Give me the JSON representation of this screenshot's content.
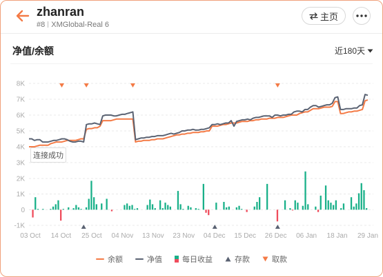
{
  "header": {
    "title": "zhanran",
    "rank": "#8",
    "account": "XMGlobal-Real 6",
    "home_label": "主页"
  },
  "section": {
    "title": "净值/余额",
    "range_label": "近180天"
  },
  "tooltip": "连接成功",
  "colors": {
    "balance": "#f47a45",
    "equity": "#5a6272",
    "profit_positive": "#19b089",
    "profit_negative": "#ef4c5c",
    "deposit": "#5a6272",
    "withdraw": "#f47a45",
    "accent": "#f47a45"
  },
  "legend": [
    {
      "key": "balance",
      "label": "余额"
    },
    {
      "key": "equity",
      "label": "净值"
    },
    {
      "key": "profit",
      "label": "每日收益"
    },
    {
      "key": "deposit",
      "label": "存款"
    },
    {
      "key": "withdraw",
      "label": "取款"
    }
  ],
  "chart_data": {
    "type": "line",
    "upper": {
      "y_ticks": [
        "8K",
        "7K",
        "6K",
        "5K",
        "4K",
        "3K"
      ],
      "ylim": [
        3000,
        8000
      ],
      "grid": true,
      "series": [
        {
          "name": "余额",
          "values": [
            4000,
            4000,
            4000,
            4050,
            4100,
            4100,
            4100,
            4100,
            4200,
            4250,
            4300,
            4300,
            4300,
            4350,
            4400,
            4400,
            4400,
            4400,
            4450,
            4500,
            4500,
            5100,
            5150,
            5150,
            5200,
            5200,
            5300,
            5650,
            5650,
            5650,
            5650,
            5700,
            5750,
            5750,
            5750,
            5750,
            5750,
            5750,
            5750,
            4300,
            4350,
            4350,
            4400,
            4400,
            4400,
            4450,
            4450,
            4500,
            4500,
            4500,
            4550,
            4600,
            4650,
            4700,
            4750,
            4750,
            4800,
            4800,
            4850,
            4850,
            4900,
            4900,
            4900,
            4950,
            4950,
            5000,
            5000,
            5300,
            5300,
            5300,
            5350,
            5400,
            5400,
            5450,
            5500,
            5500,
            5500,
            5550,
            5600,
            5600,
            5600,
            5650,
            5650,
            5700,
            5700,
            5750,
            5750,
            5750,
            5800,
            5800,
            5800,
            5850,
            5850,
            5850,
            5900,
            5950,
            6000,
            6000,
            6000,
            6100,
            6150,
            6200,
            6200,
            6300,
            6400,
            6400,
            6400,
            6450,
            6500,
            6500,
            6500,
            6550,
            6850,
            6850,
            6100,
            6100,
            6150,
            6200,
            6200,
            6250,
            6250,
            6300,
            6350,
            6900,
            6950
          ]
        },
        {
          "name": "净值",
          "values": [
            4500,
            4500,
            4400,
            4450,
            4450,
            4300,
            4300,
            4300,
            4350,
            4400,
            4400,
            4450,
            4500,
            4500,
            4450,
            4350,
            4300,
            4300,
            4350,
            4350,
            4300,
            5400,
            5450,
            5450,
            5500,
            5450,
            5400,
            5950,
            6000,
            6000,
            6000,
            5950,
            5950,
            6000,
            6050,
            6050,
            6100,
            6150,
            6200,
            4450,
            4500,
            4550,
            4550,
            4600,
            4600,
            4650,
            4650,
            4700,
            4700,
            4700,
            4750,
            4800,
            4850,
            4800,
            4850,
            4900,
            5000,
            5000,
            5050,
            5050,
            5100,
            5050,
            5050,
            5100,
            5100,
            5150,
            5200,
            5400,
            5400,
            5450,
            5400,
            5450,
            5500,
            5500,
            5650,
            5300,
            5600,
            5650,
            5700,
            5700,
            5750,
            5700,
            5800,
            5850,
            5850,
            5900,
            5950,
            5950,
            5950,
            5850,
            6000,
            6000,
            5950,
            6000,
            6000,
            6050,
            6050,
            6200,
            6250,
            6250,
            6200,
            6350,
            6350,
            6500,
            6600,
            6600,
            6500,
            6550,
            6600,
            6650,
            6650,
            6750,
            7100,
            7150,
            6350,
            6350,
            6400,
            6400,
            6400,
            6450,
            6450,
            6600,
            6650,
            7300,
            7250
          ]
        }
      ],
      "withdraw_markers": [
        12,
        21,
        38,
        91
      ]
    },
    "lower": {
      "type": "bar",
      "y_ticks": [
        "2K",
        "1K",
        "0",
        "-1K"
      ],
      "ylim": [
        -1000,
        2000
      ],
      "x_ticks": [
        "03 Oct",
        "14 Oct",
        "25 Oct",
        "04 Nov",
        "13 Nov",
        "23 Nov",
        "04 Dec",
        "15 Dec",
        "26 Dec",
        "06 Jan",
        "18 Jan",
        "29 Jan"
      ],
      "series": [
        {
          "name": "每日收益",
          "values": [
            0,
            -500,
            800,
            50,
            0,
            50,
            0,
            0,
            50,
            200,
            350,
            600,
            -700,
            50,
            0,
            150,
            0,
            100,
            300,
            150,
            50,
            0,
            150,
            700,
            1850,
            800,
            350,
            0,
            400,
            0,
            700,
            0,
            -100,
            0,
            0,
            0,
            0,
            300,
            400,
            250,
            300,
            50,
            100,
            0,
            0,
            0,
            300,
            650,
            350,
            100,
            0,
            600,
            100,
            450,
            300,
            200,
            0,
            0,
            1200,
            350,
            50,
            0,
            250,
            150,
            0,
            100,
            50,
            0,
            1650,
            -200,
            -350,
            0,
            0,
            450,
            0,
            0,
            500,
            150,
            200,
            0,
            0,
            150,
            250,
            50,
            0,
            -150,
            0,
            0,
            200,
            500,
            800,
            0,
            0,
            1650,
            0,
            0,
            0,
            -750,
            0,
            0,
            600,
            0,
            100,
            -50,
            600,
            450,
            0,
            250,
            2450,
            350,
            0,
            0,
            200,
            -150,
            900,
            0,
            1550,
            600,
            450,
            300,
            600,
            0,
            100,
            400,
            0,
            0,
            800,
            200,
            400,
            1050,
            1700,
            1250,
            100
          ]
        }
      ],
      "deposit_markers": [
        20,
        68,
        91
      ]
    }
  }
}
